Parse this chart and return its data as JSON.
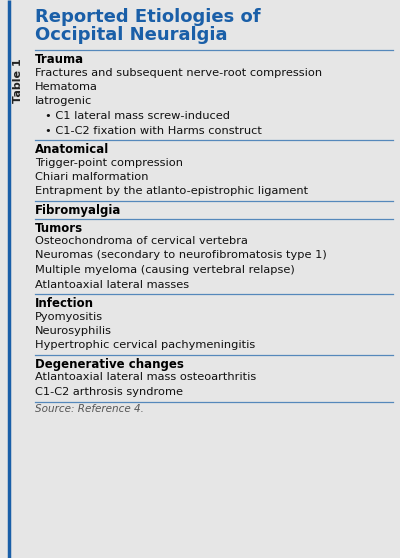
{
  "title_line1": "Reported Etiologies of",
  "title_line2": "Occipital Neuralgia",
  "table_label": "Table 1",
  "bg_color": "#e6e6e6",
  "title_color": "#1a5fa8",
  "header_color": "#000000",
  "body_color": "#111111",
  "source_color": "#555555",
  "sidebar_line_color": "#1a5fa8",
  "sidebar_text_color": "#222222",
  "divider_color": "#5588bb",
  "sections": [
    {
      "header": "Trauma",
      "items": [
        {
          "text": "Fractures and subsequent nerve-root compression",
          "indent": 0
        },
        {
          "text": "Hematoma",
          "indent": 0
        },
        {
          "text": "Iatrogenic",
          "indent": 0
        },
        {
          "text": "• C1 lateral mass screw-induced",
          "indent": 1
        },
        {
          "text": "• C1-C2 fixation with Harms construct",
          "indent": 1
        }
      ]
    },
    {
      "header": "Anatomical",
      "items": [
        {
          "text": "Trigger-point compression",
          "indent": 0
        },
        {
          "text": "Chiari malformation",
          "indent": 0
        },
        {
          "text": "Entrapment by the atlanto-epistrophic ligament",
          "indent": 0
        }
      ]
    },
    {
      "header": "Fibromyalgia",
      "items": []
    },
    {
      "header": "Tumors",
      "items": [
        {
          "text": "Osteochondroma of cervical vertebra",
          "indent": 0
        },
        {
          "text": "Neuromas (secondary to neurofibromatosis type 1)",
          "indent": 0
        },
        {
          "text": "Multiple myeloma (causing vertebral relapse)",
          "indent": 0
        },
        {
          "text": "Atlantoaxial lateral masses",
          "indent": 0
        }
      ]
    },
    {
      "header": "Infection",
      "items": [
        {
          "text": "Pyomyositis",
          "indent": 0
        },
        {
          "text": "Neurosyphilis",
          "indent": 0
        },
        {
          "text": "Hypertrophic cervical pachymeningitis",
          "indent": 0
        }
      ]
    },
    {
      "header": "Degenerative changes",
      "items": [
        {
          "text": "Atlantoaxial lateral mass osteoarthritis",
          "indent": 0
        },
        {
          "text": "C1-C2 arthrosis syndrome",
          "indent": 0
        }
      ]
    }
  ],
  "source_text": "Source: Reference 4.",
  "fig_w": 4.0,
  "fig_h": 5.58,
  "dpi": 100
}
